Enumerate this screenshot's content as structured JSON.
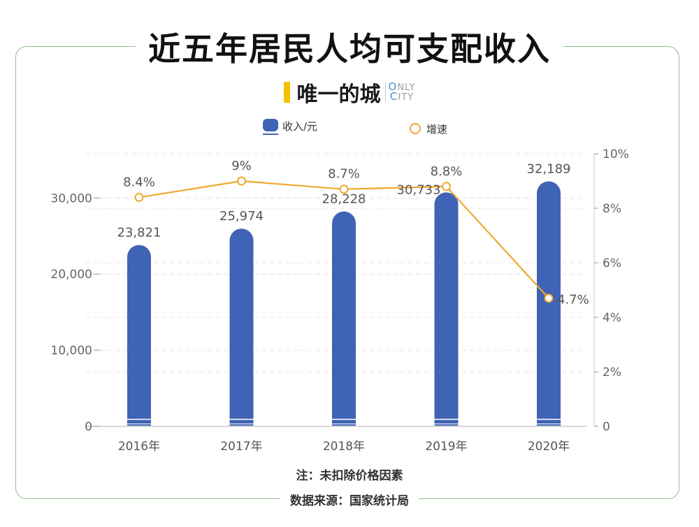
{
  "title": "近五年居民人均可支配收入",
  "brand": {
    "cn": "唯一的城",
    "en_line1": "NLY",
    "en_first1": "O",
    "en_line2": "ITY",
    "en_first2": "C"
  },
  "note": "注：未扣除价格因素",
  "source": "数据来源：国家统计局",
  "colors": {
    "bar": "#3f63b5",
    "line": "#f0a830",
    "frame": "#8fbf8a"
  },
  "chart_data": {
    "type": "bar",
    "categories": [
      "2016年",
      "2017年",
      "2018年",
      "2019年",
      "2020年"
    ],
    "series": [
      {
        "name": "收入/元",
        "type": "bar",
        "axis": "left",
        "values": [
          23821,
          25974,
          28228,
          30733,
          32189
        ],
        "labels": [
          "23,821",
          "25,974",
          "28,228",
          "30,733",
          "32,189"
        ]
      },
      {
        "name": "增速",
        "type": "line",
        "axis": "right",
        "values": [
          8.4,
          9,
          8.7,
          8.8,
          4.7
        ],
        "labels": [
          "8.4%",
          "9%",
          "8.7%",
          "8.8%",
          "4.7%"
        ]
      }
    ],
    "y_left": {
      "ticks": [
        0,
        10000,
        20000,
        30000
      ],
      "tick_labels": [
        "0",
        "10,000",
        "20,000",
        "30,000"
      ],
      "range": [
        0,
        35808
      ]
    },
    "y_right": {
      "ticks": [
        0,
        2,
        4,
        6,
        8,
        10
      ],
      "tick_labels": [
        "0",
        "2%",
        "4%",
        "6%",
        "8%",
        "10%"
      ],
      "range": [
        0,
        10
      ]
    },
    "legend": "top-center",
    "grid": true
  }
}
